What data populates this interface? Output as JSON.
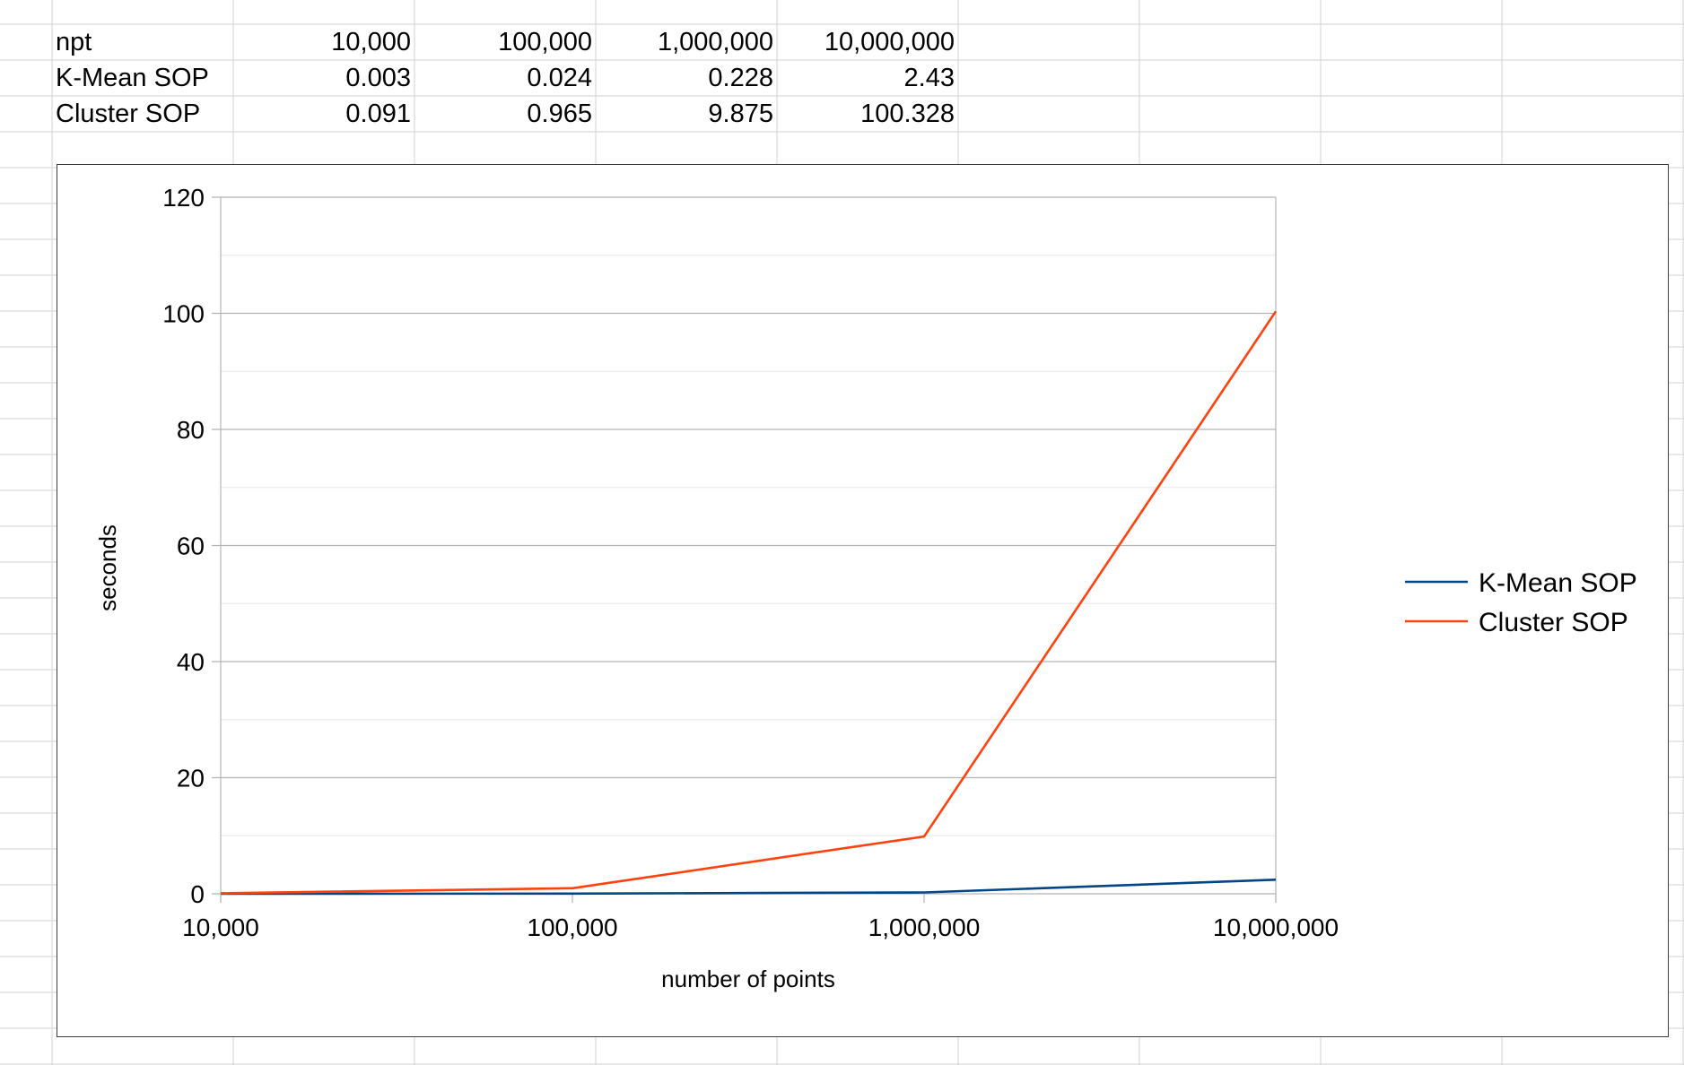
{
  "sheet": {
    "rows": [
      {
        "label": "npt",
        "values": [
          "10,000",
          "100,000",
          "1,000,000",
          "10,000,000"
        ]
      },
      {
        "label": "K-Mean SOP",
        "values": [
          "0.003",
          "0.024",
          "0.228",
          "2.43"
        ]
      },
      {
        "label": "Cluster SOP",
        "values": [
          "0.091",
          "0.965",
          "9.875",
          "100.328"
        ]
      }
    ]
  },
  "chart_data": {
    "type": "line",
    "title": "",
    "xlabel": "number of points",
    "ylabel": "seconds",
    "x_scale": "log",
    "x": [
      10000,
      100000,
      1000000,
      10000000
    ],
    "x_tick_labels": [
      "10,000",
      "100,000",
      "1,000,000",
      "10,000,000"
    ],
    "ylim": [
      0,
      120
    ],
    "y_ticks": [
      0,
      20,
      40,
      60,
      80,
      100,
      120
    ],
    "grid": true,
    "legend_position": "right",
    "series": [
      {
        "name": "K-Mean SOP",
        "values": [
          0.003,
          0.024,
          0.228,
          2.43
        ],
        "color": "#004586"
      },
      {
        "name": "Cluster SOP",
        "values": [
          0.091,
          0.965,
          9.875,
          100.328
        ],
        "color": "#ff420e"
      }
    ]
  }
}
